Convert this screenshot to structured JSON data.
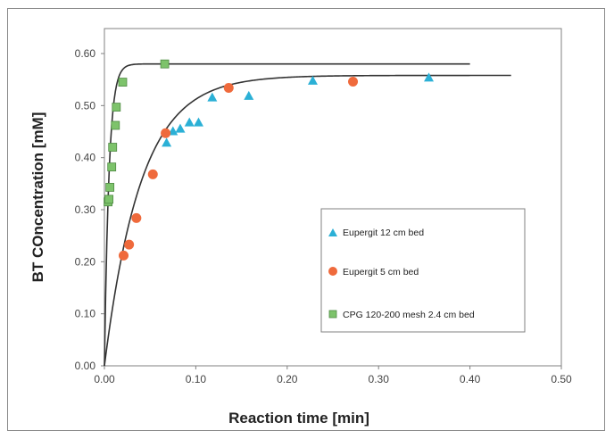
{
  "chart_data": {
    "type": "scatter",
    "title": "",
    "xlabel": "Reaction time [min]",
    "ylabel": "BT COncentration [mM]",
    "xlim": [
      0,
      0.5
    ],
    "ylim": [
      0,
      0.6
    ],
    "xticks": [
      "0.00",
      "0.10",
      "0.20",
      "0.30",
      "0.40",
      "0.50"
    ],
    "yticks": [
      "0.00",
      "0.10",
      "0.20",
      "0.30",
      "0.40",
      "0.50",
      "0.60"
    ],
    "grid": false,
    "legend_position": "inside-right",
    "series": [
      {
        "name": "Eupergit 12 cm bed",
        "marker": "triangle",
        "color": "#2bb0d6",
        "points": [
          [
            0.068,
            0.428
          ],
          [
            0.075,
            0.45
          ],
          [
            0.083,
            0.455
          ],
          [
            0.093,
            0.467
          ],
          [
            0.103,
            0.467
          ],
          [
            0.118,
            0.515
          ],
          [
            0.158,
            0.518
          ],
          [
            0.228,
            0.547
          ],
          [
            0.355,
            0.553
          ]
        ]
      },
      {
        "name": "Eupergit  5 cm bed",
        "marker": "circle",
        "color": "#ef6a3c",
        "points": [
          [
            0.021,
            0.212
          ],
          [
            0.027,
            0.233
          ],
          [
            0.035,
            0.284
          ],
          [
            0.053,
            0.368
          ],
          [
            0.067,
            0.447
          ],
          [
            0.136,
            0.534
          ],
          [
            0.272,
            0.546
          ]
        ]
      },
      {
        "name": "CPG 120-200 mesh 2.4 cm bed",
        "marker": "square",
        "color": "#7dc36b",
        "points": [
          [
            0.004,
            0.315
          ],
          [
            0.005,
            0.32
          ],
          [
            0.006,
            0.343
          ],
          [
            0.008,
            0.382
          ],
          [
            0.009,
            0.42
          ],
          [
            0.012,
            0.462
          ],
          [
            0.013,
            0.497
          ],
          [
            0.02,
            0.545
          ],
          [
            0.066,
            0.58
          ]
        ]
      }
    ],
    "fit_curves": [
      {
        "type": "exponential_rise",
        "plateau": 0.558,
        "rate_per_min": 25,
        "x_range": [
          0,
          0.445
        ],
        "color": "#333333"
      },
      {
        "type": "exponential_rise",
        "plateau": 0.58,
        "rate_per_min": 200,
        "x_range": [
          0,
          0.4
        ],
        "color": "#333333"
      }
    ]
  }
}
